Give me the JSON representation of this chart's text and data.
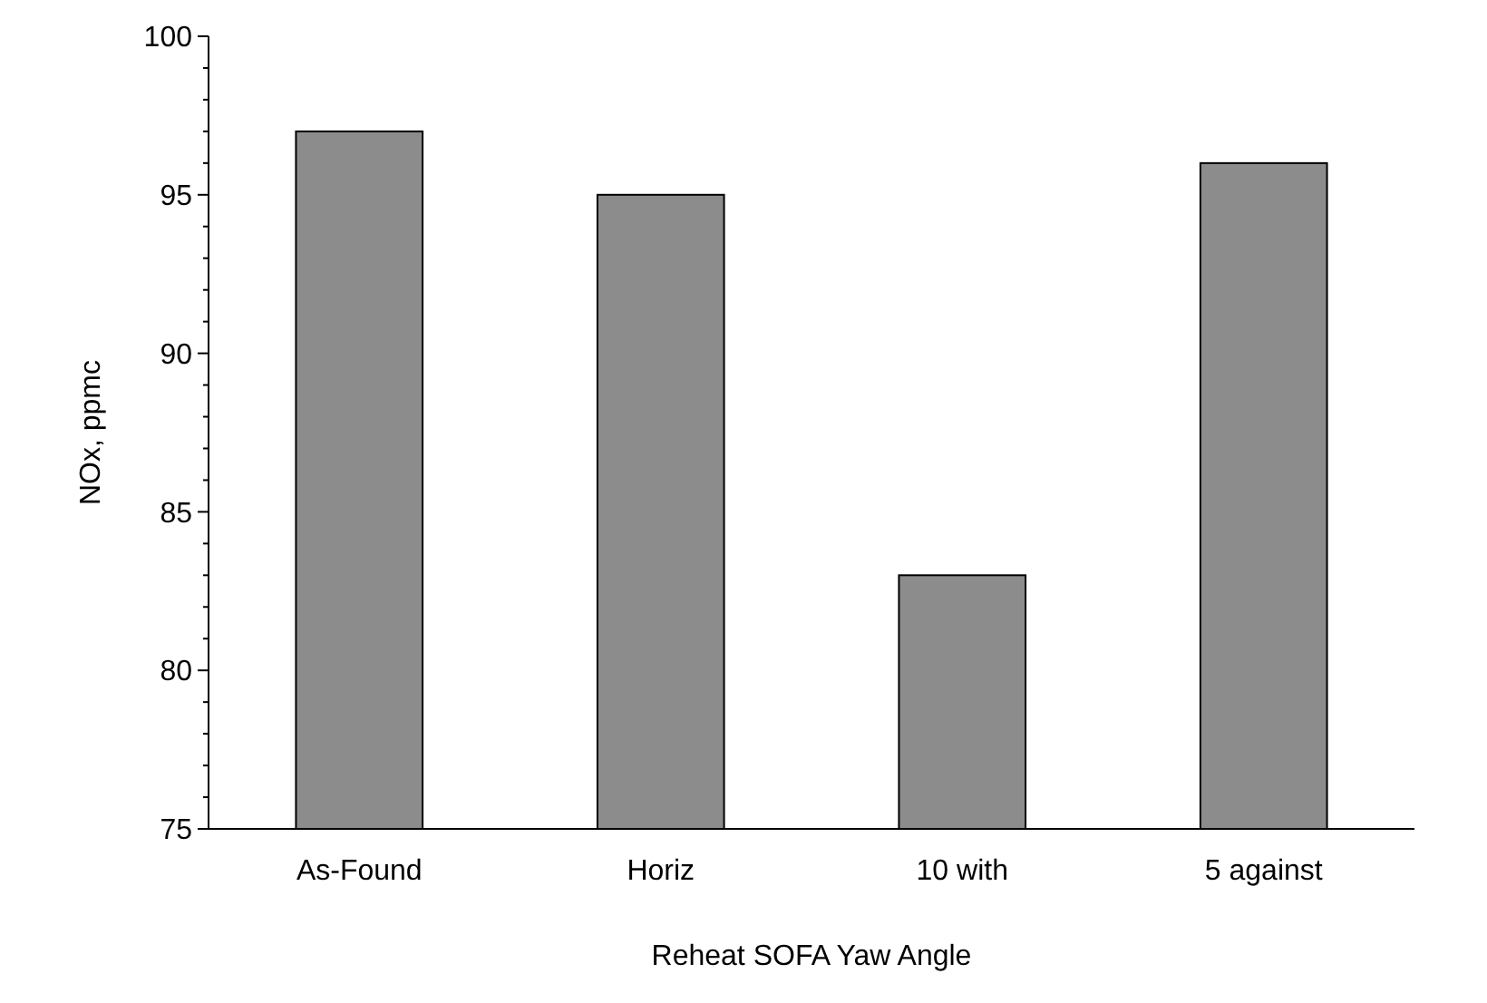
{
  "chart_data": {
    "type": "bar",
    "xlabel": "Reheat SOFA Yaw Angle",
    "ylabel": "NOx, ppmc",
    "categories": [
      "As-Found",
      "Horiz",
      "10 with",
      "5 against"
    ],
    "values": [
      97,
      95,
      83,
      96
    ],
    "color": "#8c8c8c",
    "ylim": [
      75,
      100
    ],
    "yticks": [
      75,
      {
        "value": 76,
        "label": null
      },
      {
        "value": 77,
        "label": null
      },
      {
        "value": 78,
        "label": null
      },
      {
        "value": 79,
        "label": null
      },
      80,
      {
        "value": 81,
        "label": null
      },
      {
        "value": 82,
        "label": null
      },
      {
        "value": 83,
        "label": null
      },
      {
        "value": 84,
        "label": null
      },
      85,
      {
        "value": 86,
        "label": null
      },
      {
        "value": 87,
        "label": null
      },
      {
        "value": 88,
        "label": null
      },
      {
        "value": 89,
        "label": null
      },
      90,
      {
        "value": 91,
        "label": null
      },
      {
        "value": 92,
        "label": null
      },
      {
        "value": 93,
        "label": null
      },
      {
        "value": 94,
        "label": null
      },
      95,
      {
        "value": 96,
        "label": null
      },
      {
        "value": 97,
        "label": null
      },
      {
        "value": 98,
        "label": null
      },
      {
        "value": 99,
        "label": null
      },
      100
    ],
    "grid": false
  }
}
